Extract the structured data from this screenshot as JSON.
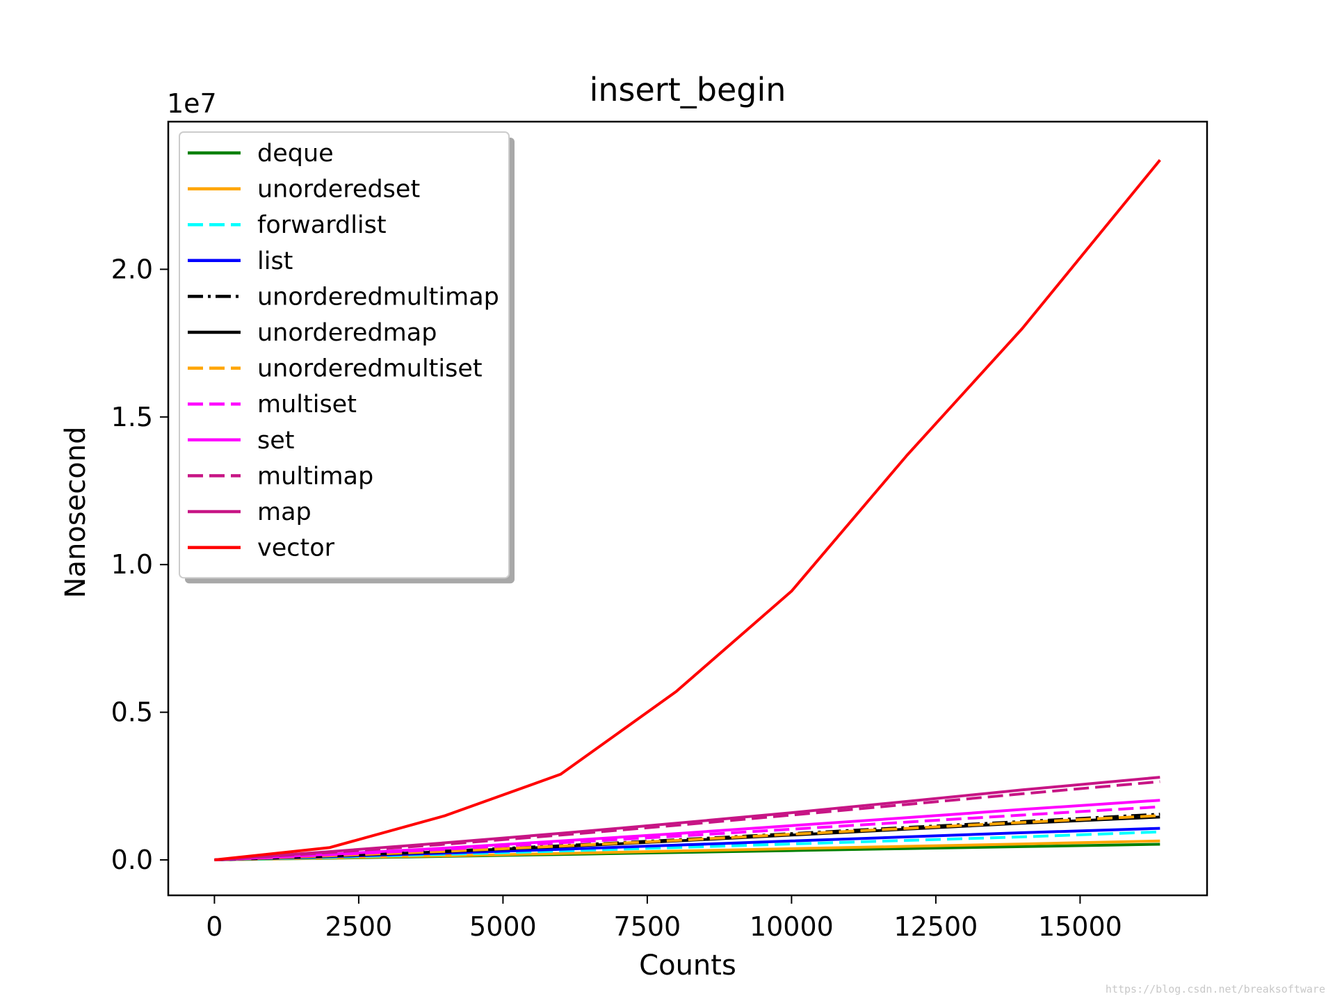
{
  "chart_data": {
    "type": "line",
    "title": "insert_begin",
    "xlabel": "Counts",
    "ylabel": "Nanosecond",
    "y_multiplier": "1e7",
    "xlim": [
      -800,
      17200
    ],
    "ylim": [
      -1200000,
      25000000
    ],
    "xticks": [
      0,
      2500,
      5000,
      7500,
      10000,
      12500,
      15000
    ],
    "xtick_labels": [
      "0",
      "2500",
      "5000",
      "7500",
      "10000",
      "12500",
      "15000"
    ],
    "yticks": [
      0,
      5000000,
      10000000,
      15000000,
      20000000
    ],
    "ytick_labels": [
      "0.0",
      "0.5",
      "1.0",
      "1.5",
      "2.0"
    ],
    "grid": false,
    "legend_position": "upper-left",
    "x": [
      0,
      2000,
      4000,
      6000,
      8000,
      10000,
      12000,
      14000,
      16384
    ],
    "series": [
      {
        "name": "deque",
        "color": "#008000",
        "dash": "solid",
        "values": [
          0,
          60000,
          120000,
          185000,
          250000,
          315000,
          385000,
          450000,
          530000
        ]
      },
      {
        "name": "unorderedset",
        "color": "#FFA500",
        "dash": "solid",
        "values": [
          0,
          70000,
          140000,
          220000,
          300000,
          380000,
          460000,
          540000,
          640000
        ]
      },
      {
        "name": "forwardlist",
        "color": "#00FFFF",
        "dash": "dashed",
        "values": [
          0,
          90000,
          190000,
          300000,
          420000,
          540000,
          660000,
          780000,
          950000
        ]
      },
      {
        "name": "list",
        "color": "#0000FF",
        "dash": "solid",
        "values": [
          0,
          110000,
          230000,
          360000,
          500000,
          640000,
          780000,
          920000,
          1070000
        ]
      },
      {
        "name": "unorderedmultimap",
        "color": "#000000",
        "dash": "dashdot",
        "values": [
          0,
          140000,
          300000,
          480000,
          680000,
          890000,
          1100000,
          1300000,
          1550000
        ]
      },
      {
        "name": "unorderedmap",
        "color": "#000000",
        "dash": "solid",
        "values": [
          0,
          130000,
          280000,
          450000,
          640000,
          840000,
          1040000,
          1240000,
          1450000
        ]
      },
      {
        "name": "unorderedmultiset",
        "color": "#FFA500",
        "dash": "dashed",
        "values": [
          0,
          140000,
          290000,
          470000,
          660000,
          870000,
          1070000,
          1270000,
          1500000
        ]
      },
      {
        "name": "multiset",
        "color": "#FF00FF",
        "dash": "dashed",
        "values": [
          0,
          170000,
          360000,
          580000,
          800000,
          1040000,
          1280000,
          1520000,
          1800000
        ]
      },
      {
        "name": "set",
        "color": "#FF00FF",
        "dash": "solid",
        "values": [
          0,
          190000,
          400000,
          640000,
          890000,
          1160000,
          1430000,
          1710000,
          2020000
        ]
      },
      {
        "name": "multimap",
        "color": "#C71585",
        "dash": "dashed",
        "values": [
          0,
          250000,
          530000,
          840000,
          1170000,
          1520000,
          1880000,
          2240000,
          2650000
        ]
      },
      {
        "name": "map",
        "color": "#C71585",
        "dash": "solid",
        "values": [
          0,
          280000,
          580000,
          900000,
          1240000,
          1600000,
          1980000,
          2370000,
          2800000
        ]
      },
      {
        "name": "vector",
        "color": "#FF0000",
        "dash": "solid",
        "values": [
          0,
          420000,
          1500000,
          2900000,
          5700000,
          9100000,
          13700000,
          18000000,
          23700000
        ]
      }
    ]
  },
  "watermark": "https://blog.csdn.net/breaksoftware"
}
